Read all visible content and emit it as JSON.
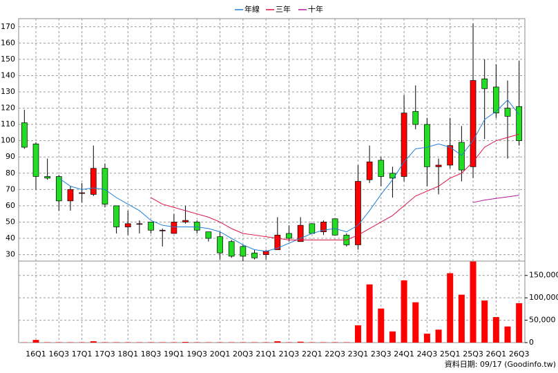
{
  "chart_data": [
    {
      "type": "candlestick",
      "open": [
        111,
        98,
        78,
        78,
        63,
        68,
        67,
        83,
        60,
        47,
        49,
        50,
        45,
        43,
        50,
        50,
        44,
        41,
        38,
        35,
        31,
        30,
        33,
        43,
        38,
        49,
        44,
        52,
        42,
        36,
        76,
        88,
        80,
        78,
        118,
        110,
        84,
        85,
        99,
        84,
        138,
        133,
        120,
        121
      ],
      "close": [
        96,
        78,
        77,
        63,
        70,
        68,
        83,
        61,
        47,
        49,
        49,
        45,
        45,
        50,
        51,
        45,
        40,
        31,
        29,
        29,
        28,
        32,
        42,
        40,
        48,
        43,
        50,
        42,
        36,
        75,
        87,
        78,
        77,
        117,
        110,
        84,
        85,
        97,
        82,
        137,
        132,
        117,
        115,
        100
      ],
      "high": [
        119,
        99,
        89,
        79,
        72,
        74,
        97,
        86,
        60,
        57,
        51,
        50,
        46,
        55,
        60,
        51,
        44,
        44,
        39,
        36,
        33,
        33,
        53,
        48,
        53,
        49,
        51,
        52,
        43,
        85,
        97,
        90,
        84,
        128,
        134,
        114,
        89,
        114,
        109,
        172,
        150,
        147,
        137,
        149
      ],
      "low": [
        95,
        70,
        76,
        57,
        57,
        62,
        66,
        59,
        43,
        42,
        43,
        43,
        35,
        43,
        49,
        43,
        38,
        27,
        28,
        26,
        27,
        27,
        33,
        38,
        38,
        43,
        42,
        42,
        35,
        33,
        74,
        72,
        65,
        75,
        107,
        72,
        67,
        83,
        75,
        77,
        101,
        114,
        89,
        97
      ],
      "up_color": "#ff0000",
      "down_color": "#22dd22",
      "series": [
        {
          "name": "年線",
          "color": "#1e7fd6",
          "values": [
            null,
            null,
            null,
            77,
            72,
            70,
            71,
            70,
            65,
            61,
            57,
            51,
            48,
            47,
            47,
            47,
            46,
            44,
            40,
            36,
            33,
            32,
            34,
            37,
            40,
            43,
            45,
            46,
            44,
            48,
            57,
            67,
            76,
            87,
            95,
            96,
            98,
            96,
            91,
            100,
            113,
            118,
            125,
            116
          ]
        },
        {
          "name": "三年",
          "color": "#dd1144",
          "values": [
            null,
            null,
            null,
            null,
            null,
            null,
            null,
            null,
            null,
            null,
            null,
            65,
            61,
            59,
            57,
            55,
            53,
            50,
            46,
            43,
            42,
            41,
            40,
            39,
            39,
            39,
            39,
            39,
            39,
            42,
            46,
            50,
            54,
            60,
            66,
            69,
            72,
            77,
            80,
            87,
            96,
            100,
            102,
            104
          ]
        },
        {
          "name": "十年",
          "color": "#b0179a",
          "values": [
            null,
            null,
            null,
            null,
            null,
            null,
            null,
            null,
            null,
            null,
            null,
            null,
            null,
            null,
            null,
            null,
            null,
            null,
            null,
            null,
            null,
            null,
            null,
            null,
            null,
            null,
            null,
            null,
            null,
            null,
            null,
            null,
            null,
            null,
            null,
            null,
            null,
            null,
            null,
            62,
            63.5,
            64.5,
            65.5,
            66.5
          ]
        }
      ],
      "ylim": [
        26,
        175
      ],
      "yticks": [
        30,
        40,
        50,
        60,
        70,
        80,
        90,
        100,
        110,
        120,
        130,
        140,
        150,
        160,
        170
      ],
      "grid": true,
      "legend": "top"
    },
    {
      "type": "bar",
      "categories": [
        null,
        "16Q1",
        null,
        "16Q3",
        null,
        "17Q1",
        null,
        "17Q3",
        null,
        "18Q1",
        null,
        "18Q3",
        null,
        "19Q1",
        null,
        "19Q3",
        null,
        "20Q1",
        null,
        "20Q3",
        null,
        "21Q1",
        null,
        "21Q3",
        null,
        "22Q1",
        null,
        "22Q3",
        null,
        "23Q1",
        null,
        "23Q3",
        null,
        "24Q1",
        null,
        "24Q3",
        null,
        "25Q1",
        null,
        "25Q3",
        null,
        "26Q1",
        null,
        "26Q3"
      ],
      "values": [
        500,
        6000,
        800,
        800,
        800,
        800,
        3000,
        800,
        800,
        800,
        800,
        800,
        800,
        800,
        1500,
        800,
        800,
        800,
        800,
        800,
        800,
        800,
        3000,
        800,
        2000,
        800,
        800,
        800,
        800,
        38700,
        130000,
        76000,
        25000,
        139000,
        90000,
        20000,
        29000,
        155000,
        107000,
        181000,
        94000,
        57000,
        36000,
        88000
      ],
      "color": "#ff0000",
      "ylim": [
        0,
        182000
      ],
      "yticks": [
        0,
        {
          "value": 50000,
          "label": "50,000"
        },
        {
          "value": 100000,
          "label": "100,000"
        },
        {
          "value": 150000,
          "label": "150,000"
        }
      ],
      "grid": true,
      "note": "資料日期: 09/17 (Goodinfo.tw)"
    }
  ]
}
